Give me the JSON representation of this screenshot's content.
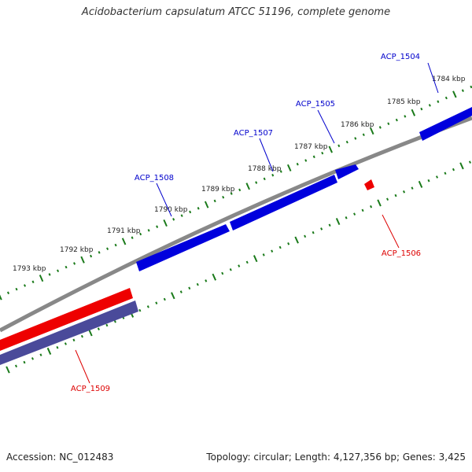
{
  "title": "Acidobacterium capsulatum ATCC 51196, complete genome",
  "footer": {
    "accession": "Accession: NC_012483",
    "summary": "Topology: circular; Length: 4,127,356 bp; Genes: 3,425"
  },
  "scale": {
    "tick_labels": [
      "1784 kbp",
      "1785 kbp",
      "1786 kbp",
      "1787 kbp",
      "1788 kbp",
      "1789 kbp",
      "1790 kbp",
      "1791 kbp",
      "1792 kbp",
      "1793 kbp"
    ]
  },
  "genes": [
    {
      "name": "ACP_1504",
      "strand": "forward",
      "color": "#0000dd",
      "label_color": "#0000cc"
    },
    {
      "name": "ACP_1505",
      "strand": "forward",
      "color": "#0000dd",
      "label_color": "#0000cc"
    },
    {
      "name": "ACP_1506",
      "strand": "reverse",
      "color": "#ee0000",
      "label_color": "#dd0000"
    },
    {
      "name": "ACP_1507",
      "strand": "forward",
      "color": "#0000dd",
      "label_color": "#0000cc"
    },
    {
      "name": "ACP_1508",
      "strand": "forward",
      "color": "#0000dd",
      "label_color": "#0000cc"
    },
    {
      "name": "ACP_1509",
      "strand": "reverse",
      "color": "#ee0000",
      "label_color": "#dd0000"
    }
  ],
  "colors": {
    "backbone": "#888888",
    "ticks": "#1a7a1a",
    "forward_gene": "#0000dd",
    "reverse_gene": "#ee0000",
    "reverse_orf": "#4a4a9a"
  }
}
